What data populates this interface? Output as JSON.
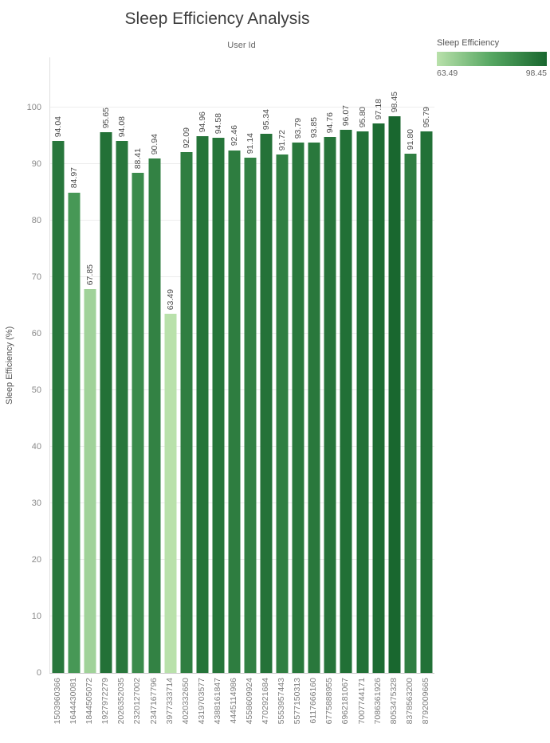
{
  "chart": {
    "title": "Sleep Efficiency Analysis",
    "top_axis_label": "User Id",
    "ylabel": "Sleep Efficiency (%)"
  },
  "legend": {
    "title": "Sleep Efficiency",
    "min": "63.49",
    "max": "98.45"
  },
  "colors": {
    "scale_light": "#b9e1ab",
    "scale_mid": "#55a661",
    "scale_dark": "#19672f"
  },
  "chart_data": {
    "type": "bar",
    "title": "Sleep Efficiency Analysis",
    "xlabel": "User Id",
    "ylabel": "Sleep Efficiency (%)",
    "ylim": [
      0,
      100
    ],
    "yticks": [
      0,
      10,
      20,
      30,
      40,
      50,
      60,
      70,
      80,
      90,
      100
    ],
    "grid": true,
    "legend": {
      "title": "Sleep Efficiency",
      "min": 63.49,
      "max": 98.45,
      "position": "top-right",
      "style": "gradient"
    },
    "categories": [
      "1503960366",
      "1644430081",
      "1844505072",
      "1927972279",
      "2026352035",
      "2320127002",
      "2347167796",
      "3977333714",
      "4020332650",
      "4319703577",
      "4388161847",
      "4445114986",
      "4558609924",
      "4702921684",
      "5553957443",
      "5577150313",
      "6117666160",
      "6775888955",
      "6962181067",
      "7007744171",
      "7086361926",
      "8053475328",
      "8378563200",
      "8792009665"
    ],
    "values": [
      94.04,
      84.97,
      67.85,
      95.65,
      94.08,
      88.41,
      90.94,
      63.49,
      92.09,
      94.96,
      94.58,
      92.46,
      91.14,
      95.34,
      91.72,
      93.79,
      93.85,
      94.76,
      96.07,
      95.8,
      97.18,
      98.45,
      91.8,
      95.79
    ],
    "value_labels": [
      "94.04",
      "84.97",
      "67.85",
      "95.65",
      "94.08",
      "88.41",
      "90.94",
      "63.49",
      "92.09",
      "94.96",
      "94.58",
      "92.46",
      "91.14",
      "95.34",
      "91.72",
      "93.79",
      "93.85",
      "94.76",
      "96.07",
      "95.80",
      "97.18",
      "98.45",
      "91.80",
      "95.79"
    ]
  }
}
